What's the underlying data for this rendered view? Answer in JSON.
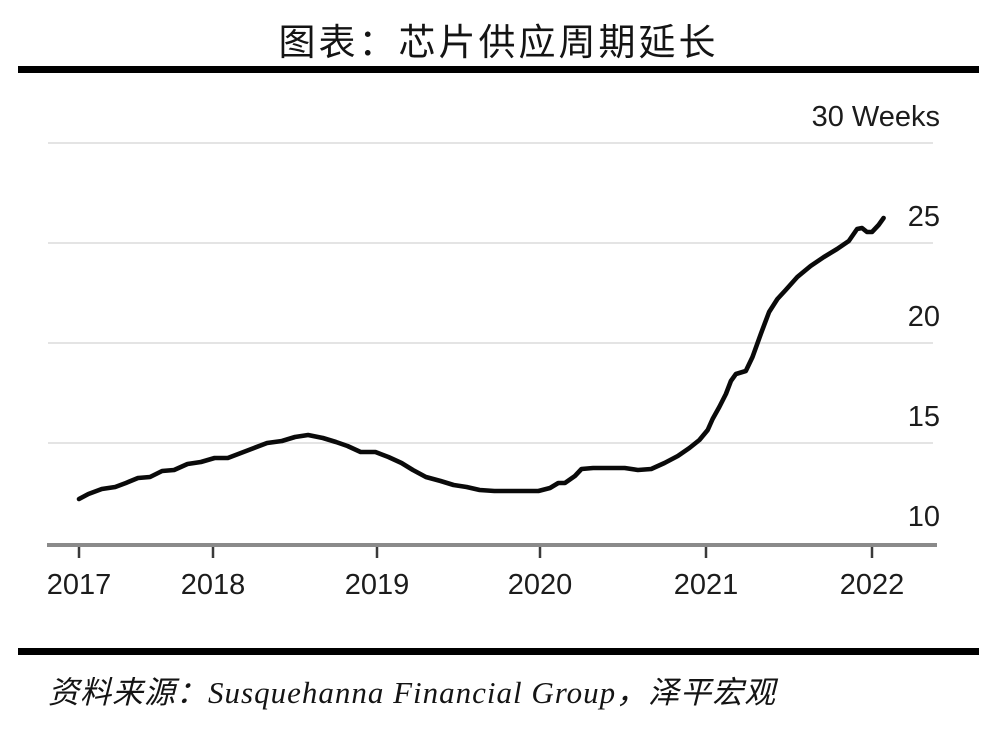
{
  "title": "图表：芯片供应周期延长",
  "source": "资料来源：Susquehanna Financial Group，泽平宏观",
  "chart_data": {
    "type": "line",
    "title": "图表：芯片供应周期延长",
    "ylabel": "Weeks",
    "xlabel": "",
    "grid": "horizontal",
    "legend": "none",
    "axis_side": "right",
    "xlim": [
      2017,
      2022.4
    ],
    "ylim": [
      10,
      30
    ],
    "x_tick_labels": [
      "2017",
      "2018",
      "2019",
      "2020",
      "2021",
      "2022"
    ],
    "x_tick_values": [
      2017,
      2018,
      2019,
      2020,
      2021,
      2022
    ],
    "y_tick_labels": [
      "30 Weeks",
      "25",
      "20",
      "15",
      "10"
    ],
    "y_tick_values": [
      30,
      25,
      20,
      15,
      10
    ],
    "y_gridline_values": [
      30,
      25,
      20,
      15
    ],
    "colors": {
      "line": "#0a0a0a",
      "grid": "#e4e4e4",
      "axis": "#8a8a8a",
      "tick": "#3a3a3a",
      "text": "#1c1c1c",
      "rule": "#000000"
    },
    "points": [
      [
        2017.0,
        12.2
      ],
      [
        2017.07,
        12.45
      ],
      [
        2017.17,
        12.7
      ],
      [
        2017.27,
        12.8
      ],
      [
        2017.35,
        13.0
      ],
      [
        2017.44,
        13.25
      ],
      [
        2017.53,
        13.3
      ],
      [
        2017.62,
        13.6
      ],
      [
        2017.71,
        13.65
      ],
      [
        2017.81,
        13.95
      ],
      [
        2017.91,
        14.05
      ],
      [
        2018.01,
        14.25
      ],
      [
        2018.09,
        14.25
      ],
      [
        2018.17,
        14.5
      ],
      [
        2018.25,
        14.75
      ],
      [
        2018.33,
        15.0
      ],
      [
        2018.42,
        15.1
      ],
      [
        2018.5,
        15.3
      ],
      [
        2018.58,
        15.4
      ],
      [
        2018.67,
        15.25
      ],
      [
        2018.75,
        15.05
      ],
      [
        2018.82,
        14.85
      ],
      [
        2018.9,
        14.55
      ],
      [
        2018.99,
        14.55
      ],
      [
        2019.07,
        14.3
      ],
      [
        2019.15,
        14.0
      ],
      [
        2019.22,
        13.65
      ],
      [
        2019.3,
        13.3
      ],
      [
        2019.39,
        13.1
      ],
      [
        2019.47,
        12.9
      ],
      [
        2019.55,
        12.8
      ],
      [
        2019.63,
        12.65
      ],
      [
        2019.72,
        12.6
      ],
      [
        2019.81,
        12.6
      ],
      [
        2019.9,
        12.6
      ],
      [
        2019.99,
        12.6
      ],
      [
        2020.06,
        12.75
      ],
      [
        2020.11,
        13.0
      ],
      [
        2020.15,
        13.0
      ],
      [
        2020.21,
        13.35
      ],
      [
        2020.25,
        13.7
      ],
      [
        2020.32,
        13.75
      ],
      [
        2020.42,
        13.75
      ],
      [
        2020.51,
        13.75
      ],
      [
        2020.59,
        13.65
      ],
      [
        2020.67,
        13.7
      ],
      [
        2020.75,
        14.0
      ],
      [
        2020.83,
        14.35
      ],
      [
        2020.9,
        14.75
      ],
      [
        2020.96,
        15.15
      ],
      [
        2021.01,
        15.65
      ],
      [
        2021.04,
        16.2
      ],
      [
        2021.08,
        16.8
      ],
      [
        2021.12,
        17.45
      ],
      [
        2021.15,
        18.1
      ],
      [
        2021.18,
        18.45
      ],
      [
        2021.24,
        18.6
      ],
      [
        2021.28,
        19.3
      ],
      [
        2021.33,
        20.45
      ],
      [
        2021.38,
        21.55
      ],
      [
        2021.43,
        22.2
      ],
      [
        2021.48,
        22.65
      ],
      [
        2021.55,
        23.3
      ],
      [
        2021.63,
        23.85
      ],
      [
        2021.71,
        24.3
      ],
      [
        2021.79,
        24.7
      ],
      [
        2021.86,
        25.1
      ],
      [
        2021.91,
        25.7
      ],
      [
        2021.94,
        25.75
      ],
      [
        2021.97,
        25.55
      ],
      [
        2022.0,
        25.55
      ],
      [
        2022.04,
        25.9
      ],
      [
        2022.07,
        26.25
      ]
    ]
  }
}
